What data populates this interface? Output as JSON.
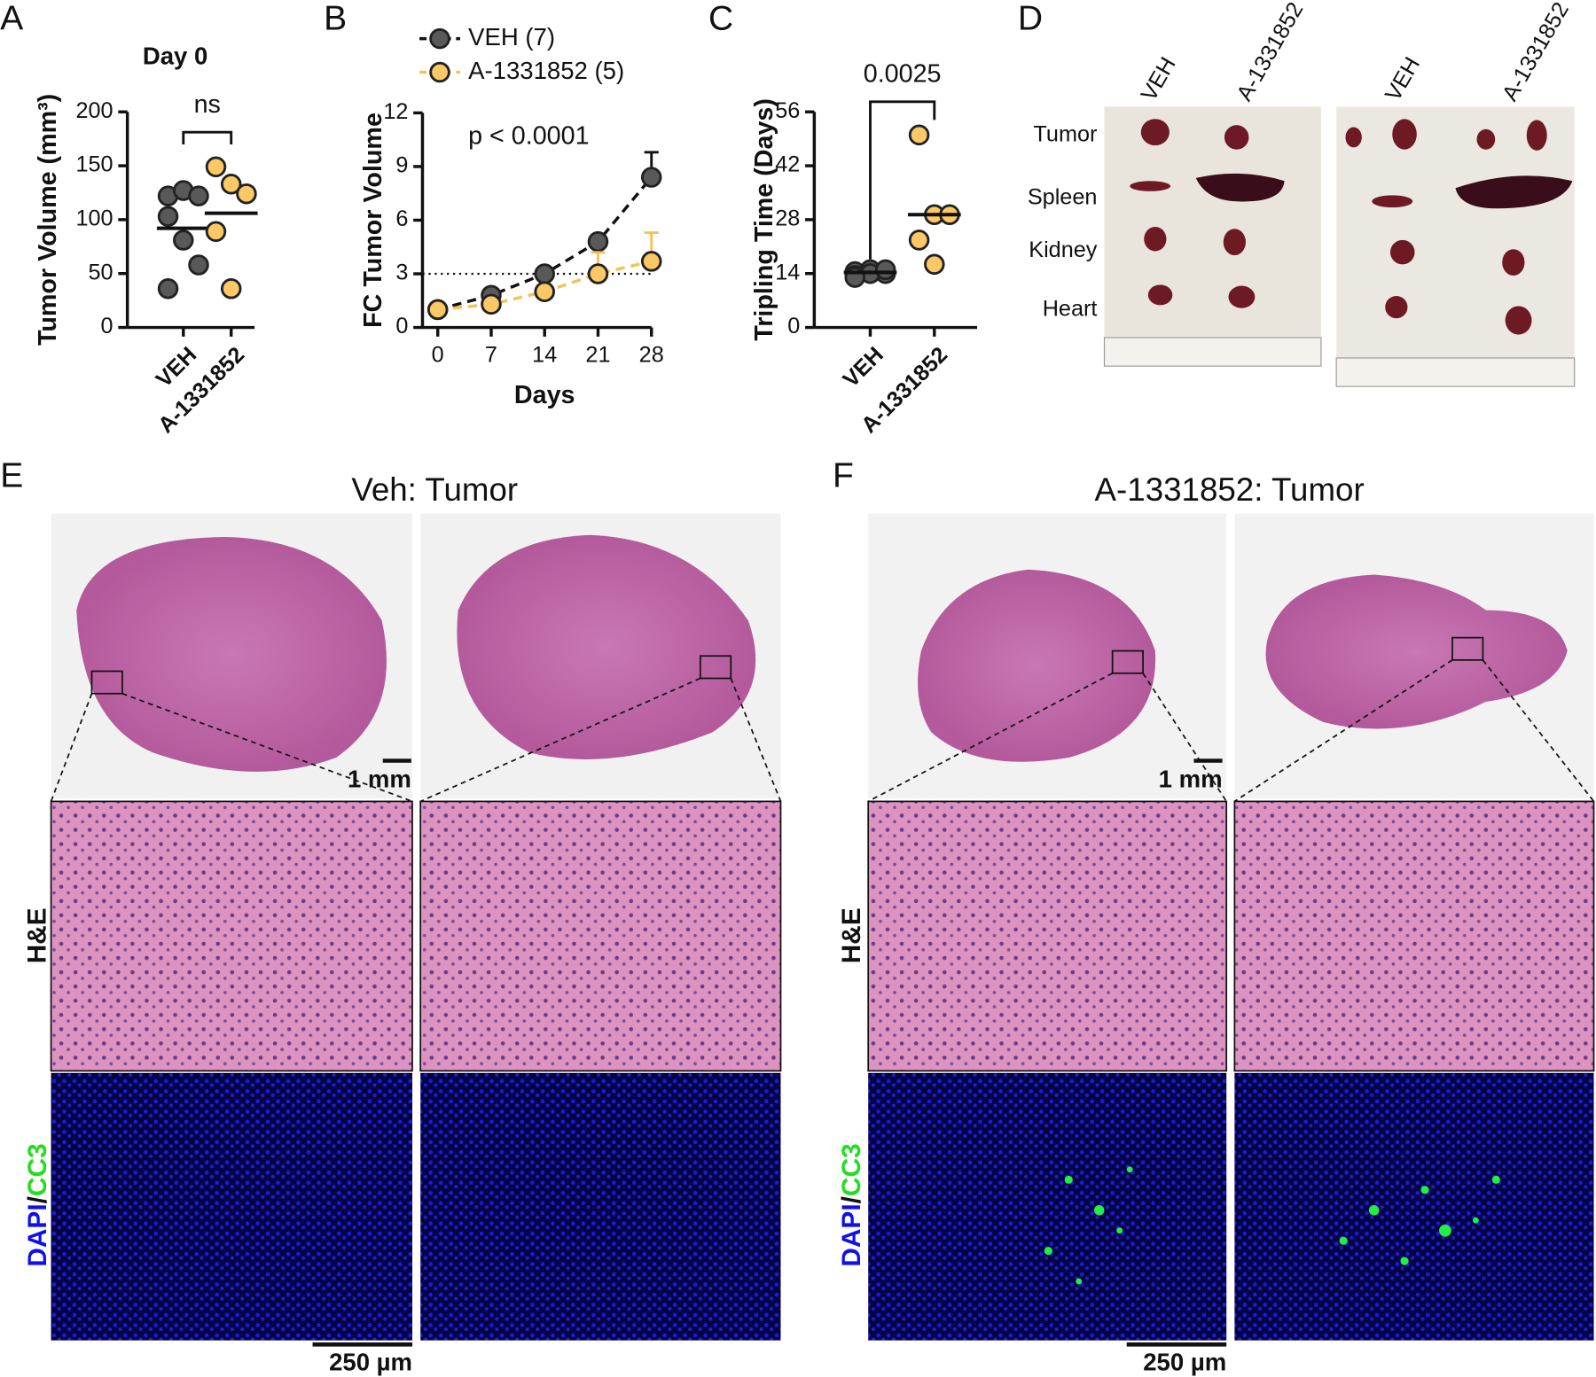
{
  "panel_labels": [
    "A",
    "B",
    "C",
    "D",
    "E",
    "F"
  ],
  "chart_data": [
    {
      "type": "strip",
      "title": "Day 0",
      "y_label": "Tumor Volume (mm³)",
      "categories": [
        "VEH",
        "A-1331852"
      ],
      "series": [
        {
          "color": "#595959",
          "values": [
            122,
            127,
            122,
            103,
            81,
            58,
            36
          ],
          "center": 92
        },
        {
          "color": "#fcc866",
          "values": [
            149,
            133,
            124,
            89,
            36
          ],
          "center": 106
        }
      ],
      "ylim": [
        0,
        200
      ],
      "yticks": [
        0,
        50,
        100,
        150,
        200
      ],
      "annotation": "ns"
    },
    {
      "type": "line",
      "x_label": "Days",
      "y_label": "FC Tumor Volume",
      "x": [
        0,
        7,
        14,
        21,
        28
      ],
      "series": [
        {
          "name": "VEH (7)",
          "color": "#595959",
          "line_color": "#111111",
          "values": [
            1,
            1.8,
            3.0,
            4.8,
            8.4
          ],
          "errors": [
            0,
            0.3,
            0.3,
            0.3,
            1.4
          ]
        },
        {
          "name": "A-1331852 (5)",
          "color": "#fcc866",
          "line_color": "#f5c25a",
          "values": [
            1,
            1.3,
            2.0,
            3.0,
            3.7
          ],
          "errors": [
            0,
            0.2,
            0.2,
            1.2,
            1.6
          ]
        }
      ],
      "xlim": [
        0,
        28
      ],
      "xticks": [
        0,
        7,
        14,
        21,
        28
      ],
      "ylim": [
        0,
        12
      ],
      "yticks": [
        0,
        3,
        6,
        9,
        12
      ],
      "hline": 3,
      "annotation": "p < 0.0001"
    },
    {
      "type": "strip",
      "y_label": "Tripling Time (Days)",
      "categories": [
        "VEH",
        "A-1331852"
      ],
      "series": [
        {
          "color": "#595959",
          "values": [
            14.5,
            15,
            14,
            13.5,
            14,
            15,
            13
          ],
          "center": 14.3
        },
        {
          "color": "#fcc866",
          "values": [
            50,
            29.3,
            29.3,
            22.7,
            16.4
          ],
          "center": 29.3
        }
      ],
      "ylim": [
        0,
        56
      ],
      "yticks": [
        0,
        14,
        28,
        42,
        56
      ],
      "annotation": "0.0025"
    }
  ],
  "photo_panel": {
    "columns": [
      "VEH",
      "A-1331852"
    ],
    "rows": [
      "Tumor",
      "Spleen",
      "Kidney",
      "Heart"
    ]
  },
  "histology": [
    {
      "title": "Veh: Tumor"
    },
    {
      "title": "A-1331852: Tumor"
    }
  ],
  "scale_bars": {
    "overview": "1 mm",
    "detail": "250 µm"
  },
  "row_labels": {
    "he": "H&E",
    "dapi": "DAPI",
    "sep": "/",
    "cc3": "CC3"
  }
}
